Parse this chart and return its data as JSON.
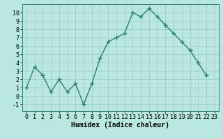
{
  "x": [
    0,
    1,
    2,
    3,
    4,
    5,
    6,
    7,
    8,
    9,
    10,
    11,
    12,
    13,
    14,
    15,
    16,
    17,
    18,
    19,
    20,
    21,
    22
  ],
  "y": [
    1,
    3.5,
    2.5,
    0.5,
    2,
    0.5,
    1.5,
    -1,
    1.5,
    4.5,
    6.5,
    7,
    7.5,
    10,
    9.5,
    10.5,
    9.5,
    8.5,
    7.5,
    6.5,
    5.5,
    4,
    2.5
  ],
  "line_color": "#2d7d6e",
  "marker": "+",
  "background_color": "#b8e8e0",
  "grid_color": "#a0cec8",
  "xlabel": "Humidex (Indice chaleur)",
  "ylim": [
    -1.8,
    11
  ],
  "xlim": [
    -0.5,
    23.5
  ],
  "yticks": [
    -1,
    0,
    1,
    2,
    3,
    4,
    5,
    6,
    7,
    8,
    9,
    10
  ],
  "xticks": [
    0,
    1,
    2,
    3,
    4,
    5,
    6,
    7,
    8,
    9,
    10,
    11,
    12,
    13,
    14,
    15,
    16,
    17,
    18,
    19,
    20,
    21,
    22,
    23
  ],
  "label_fontsize": 7,
  "tick_fontsize": 6
}
